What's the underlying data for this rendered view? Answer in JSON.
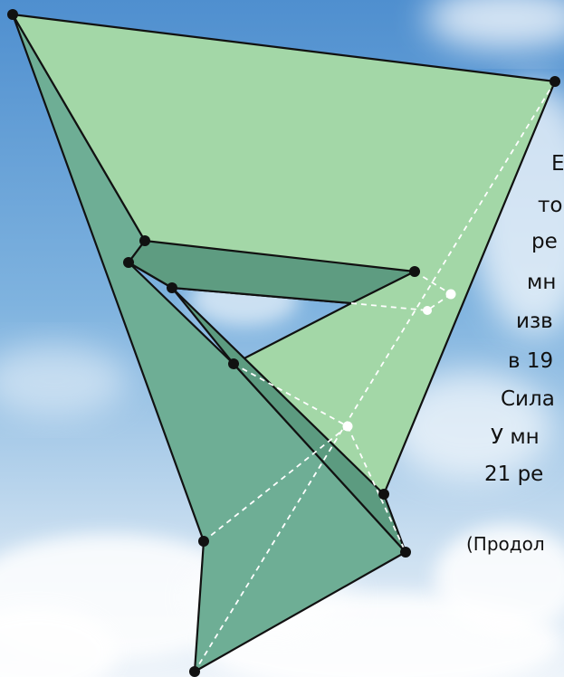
{
  "text_lines": [
    "Е",
    "то",
    "ре",
    "мн",
    "изв",
    "в 19",
    "Сила",
    "У мн",
    "21 ре"
  ],
  "continued_note": "(Продол",
  "colors": {
    "top_face": "#a2d6a6",
    "dark_face": "#5e9d80",
    "mid_face": "#73b297",
    "edge": "#111111",
    "hidden_edge": "#ffffff",
    "vertex": "#111111",
    "hidden_vertex": "#ffffff",
    "sky": "#6aa4d8"
  }
}
